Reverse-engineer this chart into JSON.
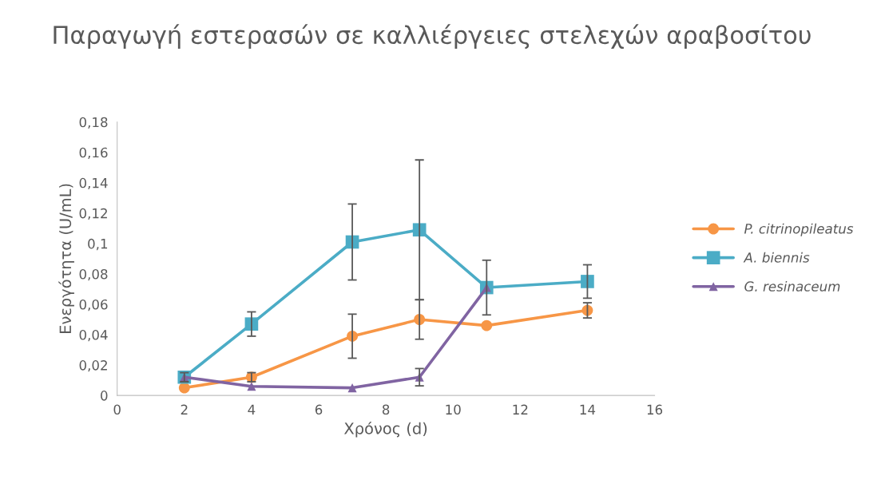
{
  "chart_data": {
    "type": "line",
    "title": "Παραγωγή εστερασών σε καλλιέργειες στελεχών αραβοσίτου",
    "xlabel": "Χρόνος (d)",
    "ylabel": "Ενεργότητα (U/mL)",
    "x": [
      2,
      4,
      7,
      9,
      11,
      14
    ],
    "series": [
      {
        "name": "P. citrinopileatus",
        "color": "#f79646",
        "marker": "circle",
        "values": [
          0.005,
          0.012,
          0.039,
          0.05,
          0.046,
          0.056
        ],
        "errors": [
          null,
          0.003,
          0.0145,
          0.013,
          null,
          0.005
        ]
      },
      {
        "name": "A. biennis",
        "color": "#4bacc6",
        "marker": "square",
        "values": [
          0.012,
          0.047,
          0.101,
          0.109,
          0.071,
          0.075
        ],
        "errors": [
          0.003,
          0.008,
          0.025,
          0.046,
          0.018,
          0.011
        ]
      },
      {
        "name": "G. resinaceum",
        "color": "#8064a2",
        "marker": "triangle",
        "values": [
          0.012,
          0.006,
          0.005,
          0.012,
          0.071,
          null
        ],
        "errors": [
          null,
          null,
          null,
          0.0057,
          null,
          null
        ]
      }
    ],
    "xlim": [
      0,
      16
    ],
    "xticks": [
      0,
      2,
      4,
      6,
      8,
      10,
      12,
      14,
      16
    ],
    "ylim": [
      0,
      0.18
    ],
    "yticks": [
      {
        "value": 0,
        "label": "0"
      },
      {
        "value": 0.02,
        "label": "0,02"
      },
      {
        "value": 0.04,
        "label": "0,04"
      },
      {
        "value": 0.06,
        "label": "0,06"
      },
      {
        "value": 0.08,
        "label": "0,08"
      },
      {
        "value": 0.1,
        "label": "0,1"
      },
      {
        "value": 0.12,
        "label": "0,12"
      },
      {
        "value": 0.14,
        "label": "0,14"
      },
      {
        "value": 0.16,
        "label": "0,16"
      },
      {
        "value": 0.18,
        "label": "0,18"
      }
    ],
    "legend": "right",
    "line_style": "solid"
  }
}
